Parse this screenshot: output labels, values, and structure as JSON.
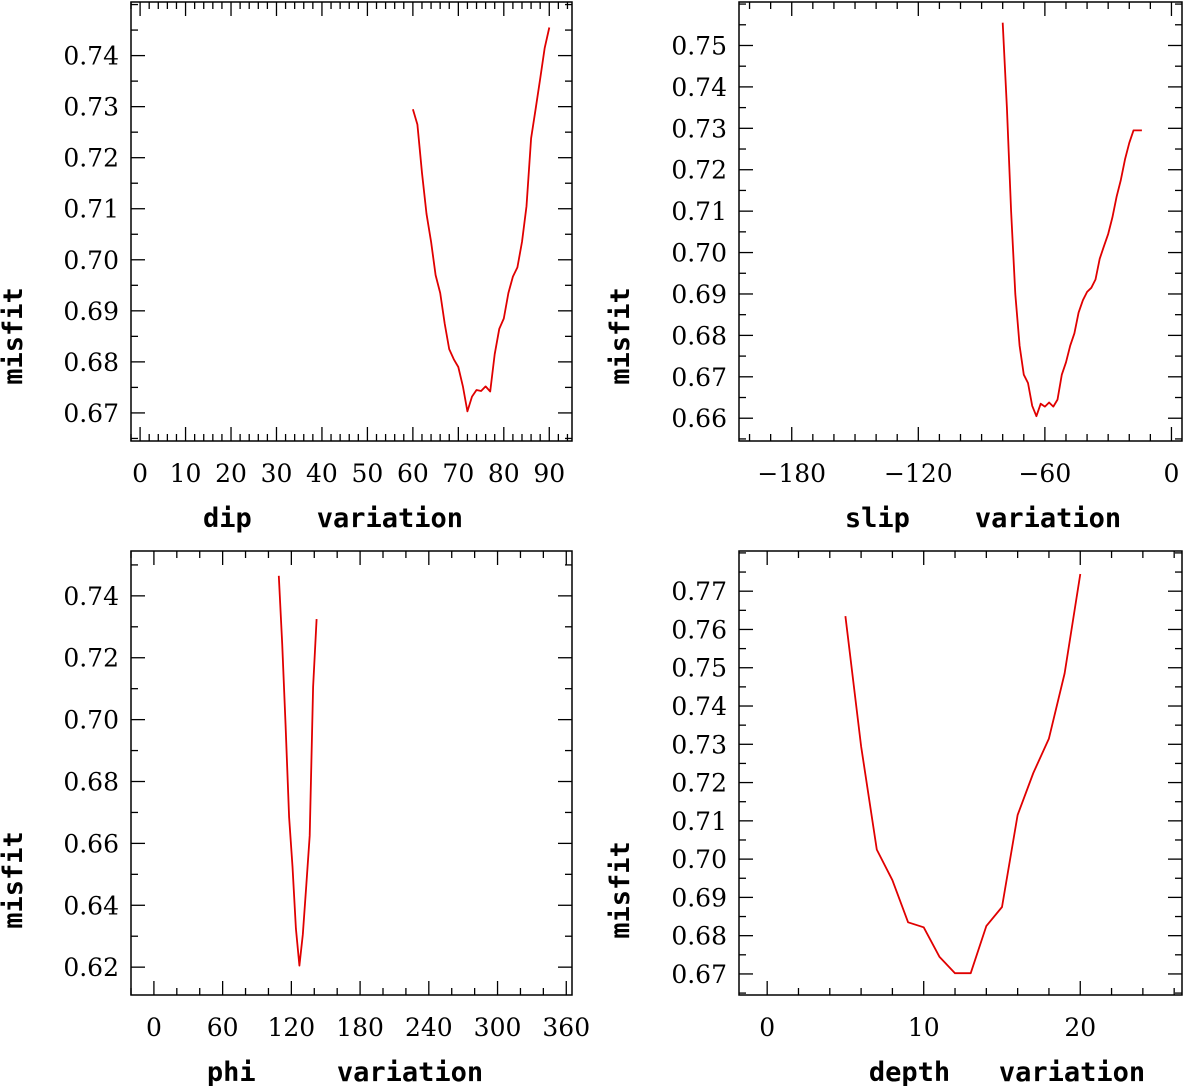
{
  "chart_data": [
    {
      "type": "line",
      "id": "dip",
      "title": "",
      "xlabel": "dip    variation",
      "ylabel": "misfit",
      "xlim": [
        -2,
        95
      ],
      "ylim": [
        0.6645,
        0.7505
      ],
      "xticks": [
        0,
        10,
        20,
        30,
        40,
        50,
        60,
        70,
        80,
        90
      ],
      "xtick_labels": [
        "0",
        "10",
        "20",
        "30",
        "40",
        "50",
        "60",
        "70",
        "80",
        "90"
      ],
      "xminor": 2,
      "yticks": [
        0.67,
        0.68,
        0.69,
        0.7,
        0.71,
        0.72,
        0.73,
        0.74
      ],
      "ytick_labels": [
        "0.67",
        "0.68",
        "0.69",
        "0.70",
        "0.71",
        "0.72",
        "0.73",
        "0.74"
      ],
      "yminor": 0.005,
      "series": [
        {
          "name": "misfit",
          "color": "#e00000",
          "x": [
            60,
            61,
            62,
            63,
            64,
            65,
            66,
            67,
            68,
            69,
            70,
            71,
            72,
            73,
            74,
            75,
            76,
            77,
            78,
            79,
            80,
            81,
            82,
            83,
            84,
            85,
            86,
            87,
            88,
            89,
            90
          ],
          "y": [
            0.7295,
            0.7265,
            0.717,
            0.709,
            0.7035,
            0.697,
            0.6935,
            0.6875,
            0.6825,
            0.6805,
            0.679,
            0.6752,
            0.6703,
            0.6732,
            0.6745,
            0.6743,
            0.6752,
            0.6742,
            0.6815,
            0.6865,
            0.6885,
            0.6935,
            0.6967,
            0.6985,
            0.7035,
            0.7105,
            0.7238,
            0.7295,
            0.7355,
            0.7415,
            0.7455
          ]
        }
      ]
    },
    {
      "type": "line",
      "id": "slip",
      "title": "",
      "xlabel": "slip    variation",
      "ylabel": "misfit",
      "xlim": [
        -205,
        5
      ],
      "ylim": [
        0.6545,
        0.7605
      ],
      "xticks": [
        -180,
        -120,
        -60,
        0
      ],
      "xtick_labels": [
        "−180",
        "−120",
        "−60",
        "0"
      ],
      "xminor": 10,
      "yticks": [
        0.66,
        0.67,
        0.68,
        0.69,
        0.7,
        0.71,
        0.72,
        0.73,
        0.74,
        0.75
      ],
      "ytick_labels": [
        "0.66",
        "0.67",
        "0.68",
        "0.69",
        "0.70",
        "0.71",
        "0.72",
        "0.73",
        "0.74",
        "0.75"
      ],
      "yminor": 0.005,
      "series": [
        {
          "name": "misfit",
          "color": "#e00000",
          "x": [
            -80,
            -78,
            -76,
            -74,
            -72,
            -70,
            -68,
            -66,
            -64,
            -62,
            -60,
            -58,
            -56,
            -54,
            -52,
            -50,
            -48,
            -46,
            -44,
            -42,
            -40,
            -38,
            -36,
            -34,
            -32,
            -30,
            -28,
            -26,
            -24,
            -22,
            -20,
            -18,
            -16,
            -14
          ],
          "y": [
            0.7555,
            0.735,
            0.71,
            0.69,
            0.6775,
            0.6705,
            0.6685,
            0.663,
            0.6605,
            0.6635,
            0.6628,
            0.6638,
            0.6628,
            0.6645,
            0.6705,
            0.6735,
            0.6775,
            0.6805,
            0.6855,
            0.6885,
            0.6905,
            0.6915,
            0.6935,
            0.6985,
            0.7015,
            0.7045,
            0.7085,
            0.7135,
            0.7175,
            0.7225,
            0.7265,
            0.7295,
            0.7295,
            0.7295
          ]
        }
      ]
    },
    {
      "type": "line",
      "id": "phi",
      "title": "",
      "xlabel": "phi     variation",
      "ylabel": "misfit",
      "xlim": [
        -20,
        365
      ],
      "ylim": [
        0.611,
        0.7545
      ],
      "xticks": [
        0,
        60,
        120,
        180,
        240,
        300,
        360
      ],
      "xtick_labels": [
        "0",
        "60",
        "120",
        "180",
        "240",
        "300",
        "360"
      ],
      "xminor": 20,
      "yticks": [
        0.62,
        0.64,
        0.66,
        0.68,
        0.7,
        0.72,
        0.74
      ],
      "ytick_labels": [
        "0.62",
        "0.64",
        "0.66",
        "0.68",
        "0.70",
        "0.72",
        "0.74"
      ],
      "yminor": 0.01,
      "series": [
        {
          "name": "misfit",
          "color": "#e00000",
          "x": [
            109,
            112,
            115,
            118,
            121,
            124,
            127,
            130,
            133,
            136,
            139,
            142
          ],
          "y": [
            0.7465,
            0.7245,
            0.698,
            0.6685,
            0.6525,
            0.6325,
            0.6205,
            0.6305,
            0.6465,
            0.6625,
            0.7105,
            0.7325
          ]
        }
      ]
    },
    {
      "type": "line",
      "id": "depth",
      "title": "",
      "xlabel": "depth   variation",
      "ylabel": "misfit",
      "xlim": [
        -1.8,
        26.5
      ],
      "ylim": [
        0.6645,
        0.7805
      ],
      "xticks": [
        0,
        10,
        20
      ],
      "xtick_labels": [
        "0",
        "10",
        "20"
      ],
      "xminor": 2,
      "yticks": [
        0.67,
        0.68,
        0.69,
        0.7,
        0.71,
        0.72,
        0.73,
        0.74,
        0.75,
        0.76,
        0.77
      ],
      "ytick_labels": [
        "0.67",
        "0.68",
        "0.69",
        "0.70",
        "0.71",
        "0.72",
        "0.73",
        "0.74",
        "0.75",
        "0.76",
        "0.77"
      ],
      "yminor": 0.005,
      "series": [
        {
          "name": "misfit",
          "color": "#e00000",
          "x": [
            5,
            6,
            7,
            8,
            9,
            10,
            11,
            12,
            13,
            14,
            15,
            16,
            17,
            18,
            19,
            20
          ],
          "y": [
            0.7635,
            0.7295,
            0.7025,
            0.6945,
            0.6835,
            0.6822,
            0.6745,
            0.6702,
            0.6702,
            0.6825,
            0.6875,
            0.7115,
            0.7225,
            0.7315,
            0.7485,
            0.7745
          ]
        }
      ]
    }
  ]
}
